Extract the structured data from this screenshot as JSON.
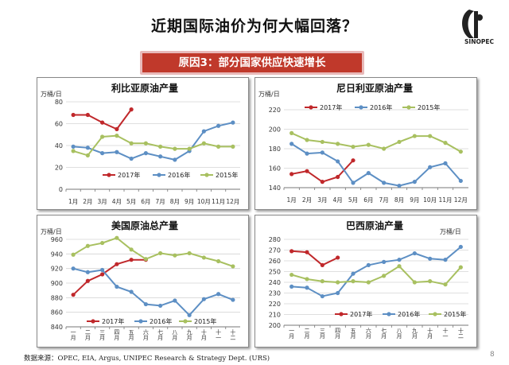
{
  "header": {
    "title": "近期国际油价为何大幅回落？",
    "reason": "原因3：部分国家供应快速增长",
    "logo_text": "SINOPEC"
  },
  "footer": {
    "source": "数据来源：OPEC, EIA, Argus, UNIPEC Research & Strategy Dept. (URS)",
    "page": "8"
  },
  "colors": {
    "s2017": "#c0282b",
    "s2016": "#5d8fc4",
    "s2015": "#a8c060"
  },
  "chart_data": [
    {
      "type": "line",
      "title": "利比亚原油产量",
      "unit": "万桶/日",
      "categories": [
        "1月",
        "2月",
        "3月",
        "4月",
        "5月",
        "6月",
        "7月",
        "8月",
        "9月",
        "10月",
        "11月",
        "12月"
      ],
      "ylim": [
        0,
        80
      ],
      "yticks": [
        0,
        20,
        40,
        60,
        80
      ],
      "legend_position": "middle",
      "series": [
        {
          "name": "2017年",
          "values": [
            68,
            68,
            61,
            55,
            73,
            null,
            null,
            null,
            null,
            null,
            null,
            null
          ]
        },
        {
          "name": "2016年",
          "values": [
            39,
            38,
            33,
            34,
            28,
            33,
            30,
            27,
            35,
            53,
            58,
            61
          ]
        },
        {
          "name": "2015年",
          "values": [
            35,
            31,
            48,
            49,
            42,
            42,
            39,
            37,
            37,
            42,
            39,
            39
          ]
        }
      ]
    },
    {
      "type": "line",
      "title": "尼日利亚原油产量",
      "unit": "万桶/日",
      "categories": [
        "1月",
        "2月",
        "3月",
        "4月",
        "5月",
        "6月",
        "7月",
        "8月",
        "9月",
        "10月",
        "11月",
        "12月"
      ],
      "ylim": [
        140,
        220
      ],
      "yticks": [
        140,
        160,
        180,
        200,
        220
      ],
      "legend_position": "top",
      "series": [
        {
          "name": "2017年",
          "values": [
            154,
            157,
            146,
            151,
            168,
            null,
            null,
            null,
            null,
            null,
            null,
            null
          ]
        },
        {
          "name": "2016年",
          "values": [
            185,
            175,
            176,
            167,
            145,
            155,
            145,
            142,
            146,
            161,
            165,
            147
          ]
        },
        {
          "name": "2015年",
          "values": [
            196,
            189,
            187,
            185,
            182,
            184,
            180,
            187,
            193,
            193,
            186,
            177
          ]
        }
      ]
    },
    {
      "type": "line",
      "title": "美国原油总产量",
      "unit": "万桶/日",
      "categories": [
        "一月",
        "二月",
        "三月",
        "四月",
        "五月",
        "六月",
        "七月",
        "八月",
        "九月",
        "十月",
        "十一",
        "十二"
      ],
      "ylim": [
        840,
        960
      ],
      "yticks": [
        840,
        860,
        880,
        900,
        920,
        940,
        960
      ],
      "legend_position": "bottom",
      "series": [
        {
          "name": "2017年",
          "values": [
            884,
            903,
            912,
            926,
            932,
            932,
            null,
            null,
            null,
            null,
            null,
            null
          ]
        },
        {
          "name": "2016年",
          "values": [
            920,
            915,
            918,
            895,
            888,
            871,
            869,
            876,
            856,
            878,
            885,
            877
          ]
        },
        {
          "name": "2015年",
          "values": [
            939,
            951,
            955,
            962,
            946,
            933,
            941,
            938,
            941,
            935,
            930,
            923
          ]
        }
      ]
    },
    {
      "type": "line",
      "title": "巴西原油产量",
      "unit": "万桶/日",
      "categories": [
        "一月",
        "二月",
        "三月",
        "四月",
        "五月",
        "六月",
        "七月",
        "八月",
        "九月",
        "十月",
        "十一",
        "十二"
      ],
      "ylim": [
        200,
        280
      ],
      "yticks": [
        200,
        210,
        220,
        230,
        240,
        250,
        260,
        270,
        280
      ],
      "legend_position": "bottom",
      "series": [
        {
          "name": "2017年",
          "values": [
            269,
            268,
            256,
            263,
            null,
            null,
            null,
            null,
            null,
            null,
            null,
            null
          ]
        },
        {
          "name": "2016年",
          "values": [
            236,
            235,
            227,
            230,
            248,
            256,
            259,
            261,
            267,
            262,
            261,
            273
          ]
        },
        {
          "name": "2015年",
          "values": [
            247,
            243,
            241,
            240,
            241,
            240,
            246,
            255,
            240,
            241,
            238,
            254
          ]
        }
      ]
    }
  ]
}
